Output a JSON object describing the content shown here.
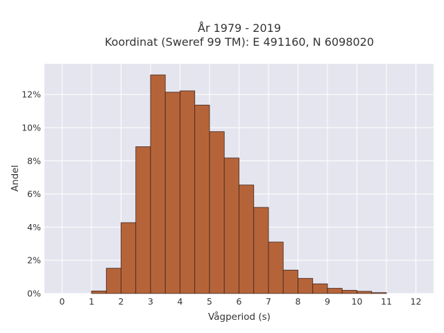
{
  "chart_data": {
    "type": "bar",
    "title_line1": "År 1979 - 2019",
    "title_line2": "Koordinat (Sweref 99 TM): E 491160, N 6098020",
    "xlabel": "Vågperiod (s)",
    "ylabel": "Andel",
    "bin_width": 0.5,
    "bins": [
      {
        "x": 0.0,
        "value": 0.0
      },
      {
        "x": 1.0,
        "value": 0.15
      },
      {
        "x": 1.5,
        "value": 1.52
      },
      {
        "x": 2.0,
        "value": 4.27
      },
      {
        "x": 2.5,
        "value": 8.85
      },
      {
        "x": 3.0,
        "value": 13.18
      },
      {
        "x": 3.5,
        "value": 12.14
      },
      {
        "x": 4.0,
        "value": 12.22
      },
      {
        "x": 4.5,
        "value": 11.36
      },
      {
        "x": 5.0,
        "value": 9.76
      },
      {
        "x": 5.5,
        "value": 8.17
      },
      {
        "x": 6.0,
        "value": 6.54
      },
      {
        "x": 6.5,
        "value": 5.19
      },
      {
        "x": 7.0,
        "value": 3.1
      },
      {
        "x": 7.5,
        "value": 1.41
      },
      {
        "x": 8.0,
        "value": 0.91
      },
      {
        "x": 8.5,
        "value": 0.58
      },
      {
        "x": 9.0,
        "value": 0.31
      },
      {
        "x": 9.5,
        "value": 0.19
      },
      {
        "x": 10.0,
        "value": 0.13
      },
      {
        "x": 10.5,
        "value": 0.05
      }
    ],
    "xlim": [
      -0.6,
      12.6
    ],
    "ylim": [
      0,
      13.85
    ],
    "x_ticks": [
      0,
      1,
      2,
      3,
      4,
      5,
      6,
      7,
      8,
      9,
      10,
      11,
      12
    ],
    "x_tick_labels": [
      "0",
      "1",
      "2",
      "3",
      "4",
      "5",
      "6",
      "7",
      "8",
      "9",
      "10",
      "11",
      "12"
    ],
    "y_ticks": [
      0,
      2,
      4,
      6,
      8,
      10,
      12
    ],
    "y_tick_labels": [
      "0%",
      "2%",
      "4%",
      "6%",
      "8%",
      "10%",
      "12%"
    ],
    "grid": true,
    "legend": "none",
    "colors": {
      "bar_fill": "#b5643a",
      "bar_edge": "#3d2418",
      "plot_bg": "#e5e5ef",
      "grid": "#ffffff",
      "text": "#333333"
    }
  }
}
